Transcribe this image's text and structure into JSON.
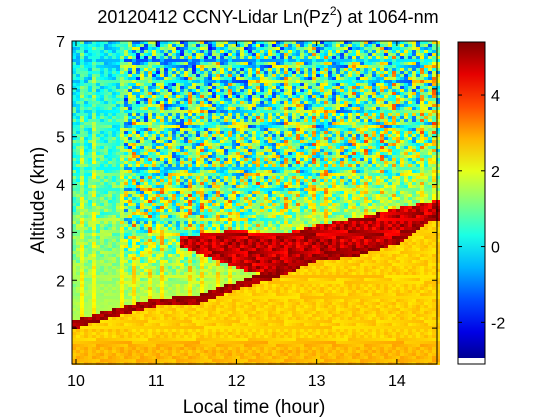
{
  "chart_data": {
    "type": "heatmap",
    "title": "20120412 CCNY-Lidar Ln(Pz",
    "title_superscript": "2",
    "title_suffix": ") at 1064-nm",
    "xlabel": "Local time (hour)",
    "ylabel": "Altitude (km)",
    "xlim": [
      9.95,
      14.5
    ],
    "ylim": [
      0.25,
      7.0
    ],
    "x_ticks": [
      10,
      11,
      12,
      13,
      14
    ],
    "y_ticks": [
      1,
      2,
      3,
      4,
      5,
      6,
      7
    ],
    "colorbar": {
      "range": [
        -3.1,
        5.4
      ],
      "ticks": [
        -2,
        0,
        2,
        4
      ],
      "colormap": "jet"
    },
    "features": {
      "boundary_layer_top_km": [
        [
          10.0,
          1.05
        ],
        [
          10.5,
          1.3
        ],
        [
          11.0,
          1.5
        ],
        [
          11.5,
          1.55
        ],
        [
          12.0,
          1.85
        ],
        [
          12.5,
          2.1
        ],
        [
          13.0,
          2.45
        ],
        [
          13.5,
          2.55
        ],
        [
          14.0,
          2.8
        ],
        [
          14.45,
          3.3
        ]
      ],
      "aerosol_layer_top_km": [
        [
          11.3,
          2.9
        ],
        [
          12.0,
          3.05
        ],
        [
          12.5,
          2.95
        ],
        [
          13.0,
          3.15
        ],
        [
          13.5,
          3.3
        ],
        [
          14.0,
          3.5
        ],
        [
          14.45,
          3.65
        ]
      ],
      "aerosol_layer_bottom_km": [
        [
          11.3,
          2.7
        ],
        [
          12.0,
          2.25
        ],
        [
          12.5,
          2.05
        ],
        [
          13.0,
          2.4
        ],
        [
          13.5,
          2.25
        ],
        [
          14.0,
          2.6
        ],
        [
          14.45,
          2.7
        ]
      ]
    }
  }
}
